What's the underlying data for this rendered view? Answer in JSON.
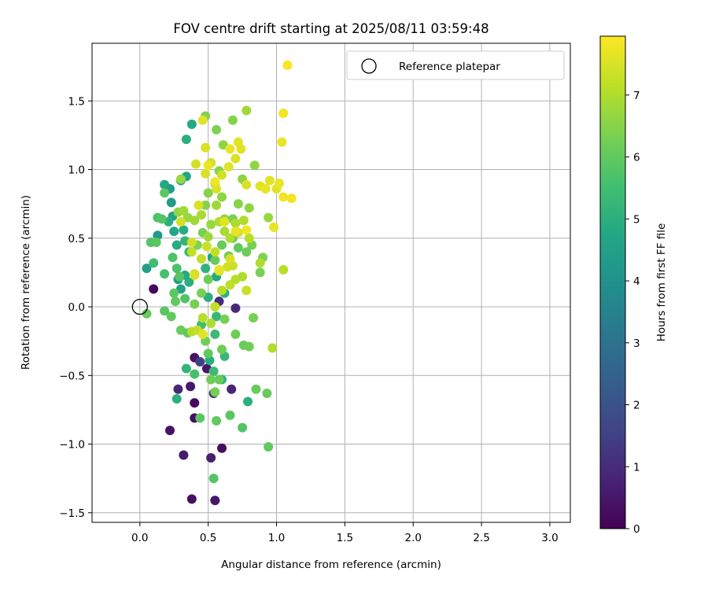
{
  "chart_data": {
    "type": "scatter",
    "title": "FOV centre drift starting at 2025/08/11 03:59:48",
    "xlabel": "Angular distance from reference (arcmin)",
    "ylabel": "Rotation from reference (arcmin)",
    "xlim": [
      -0.35,
      3.15
    ],
    "ylim": [
      -1.57,
      1.92
    ],
    "xticks": [
      "0.0",
      "0.5",
      "1.0",
      "1.5",
      "2.0",
      "2.5",
      "3.0"
    ],
    "yticks": [
      "−1.5",
      "−1.0",
      "−0.5",
      "0.0",
      "0.5",
      "1.0",
      "1.5"
    ],
    "grid": true,
    "legend": {
      "placement": "top-right",
      "entries": [
        {
          "label": "Reference platepar",
          "marker": "open-circle",
          "x": 0.0,
          "y": 0.0
        }
      ]
    },
    "colorbar": {
      "label": "Hours from first FF file",
      "range": [
        0,
        7.95
      ],
      "ticks": [
        "0",
        "1",
        "2",
        "3",
        "4",
        "5",
        "6",
        "7"
      ],
      "colormap": "viridis"
    },
    "series": [
      {
        "points": [
          [
            0.1,
            0.13,
            0.2
          ],
          [
            0.22,
            -0.9,
            0.4
          ],
          [
            0.28,
            -0.6,
            0.9
          ],
          [
            0.32,
            -1.08,
            0.6
          ],
          [
            0.37,
            -0.58,
            0.5
          ],
          [
            0.38,
            -1.4,
            0.3
          ],
          [
            0.4,
            -0.7,
            0.2
          ],
          [
            0.4,
            -0.81,
            0.3
          ],
          [
            0.4,
            -0.37,
            0.4
          ],
          [
            0.49,
            -0.45,
            0.5
          ],
          [
            0.52,
            -1.1,
            0.7
          ],
          [
            0.55,
            -1.41,
            0.5
          ],
          [
            0.54,
            -0.63,
            1.2
          ],
          [
            0.6,
            -1.03,
            0.3
          ],
          [
            0.67,
            -0.6,
            0.8
          ],
          [
            0.7,
            -0.01,
            0.9
          ],
          [
            0.58,
            0.04,
            1.0
          ],
          [
            0.44,
            -0.4,
            1.5
          ],
          [
            0.05,
            0.28,
            4.5
          ],
          [
            0.13,
            0.52,
            4.2
          ],
          [
            0.18,
            0.89,
            4.8
          ],
          [
            0.22,
            0.86,
            4.4
          ],
          [
            0.23,
            0.76,
            4.3
          ],
          [
            0.24,
            0.66,
            4.6
          ],
          [
            0.21,
            0.62,
            5.0
          ],
          [
            0.25,
            0.55,
            4.7
          ],
          [
            0.27,
            0.45,
            4.9
          ],
          [
            0.3,
            0.92,
            4.6
          ],
          [
            0.34,
            0.95,
            4.7
          ],
          [
            0.38,
            1.33,
            4.8
          ],
          [
            0.34,
            1.22,
            5.0
          ],
          [
            0.28,
            0.2,
            4.4
          ],
          [
            0.3,
            0.13,
            4.6
          ],
          [
            0.33,
            0.23,
            4.8
          ],
          [
            0.36,
            0.18,
            5.0
          ],
          [
            0.32,
            0.56,
            4.9
          ],
          [
            0.33,
            0.48,
            5.2
          ],
          [
            0.36,
            0.4,
            5.3
          ],
          [
            0.27,
            -0.67,
            5.0
          ],
          [
            0.34,
            -0.45,
            5.2
          ],
          [
            0.48,
            0.28,
            5.1
          ],
          [
            0.53,
            0.36,
            4.6
          ],
          [
            0.56,
            0.22,
            4.8
          ],
          [
            0.62,
            0.1,
            5.0
          ],
          [
            0.51,
            -0.39,
            4.9
          ],
          [
            0.55,
            -0.2,
            5.4
          ],
          [
            0.62,
            -0.36,
            5.3
          ],
          [
            0.6,
            -0.53,
            5.1
          ],
          [
            0.79,
            -0.69,
            5.0
          ],
          [
            0.5,
            0.07,
            5.0
          ],
          [
            0.45,
            -0.13,
            5.5
          ],
          [
            0.54,
            -0.47,
            5.4
          ],
          [
            0.4,
            -0.49,
            5.6
          ],
          [
            0.56,
            -0.07,
            5.3
          ],
          [
            0.18,
            0.24,
            5.6
          ],
          [
            0.1,
            0.32,
            5.5
          ],
          [
            0.13,
            0.65,
            5.7
          ],
          [
            0.16,
            0.64,
            5.8
          ],
          [
            0.18,
            0.83,
            5.9
          ],
          [
            0.08,
            0.47,
            5.8
          ],
          [
            0.12,
            0.47,
            5.9
          ],
          [
            0.24,
            0.36,
            5.7
          ],
          [
            0.27,
            0.28,
            5.7
          ],
          [
            0.29,
            0.22,
            5.8
          ],
          [
            0.33,
            0.06,
            5.8
          ],
          [
            0.25,
            0.1,
            5.9
          ],
          [
            0.26,
            0.04,
            6.0
          ],
          [
            0.23,
            -0.07,
            6.0
          ],
          [
            0.18,
            -0.03,
            5.9
          ],
          [
            0.05,
            -0.05,
            6.1
          ],
          [
            0.3,
            -0.17,
            6.1
          ],
          [
            0.35,
            -0.19,
            6.0
          ],
          [
            0.44,
            -0.81,
            5.9
          ],
          [
            0.54,
            -1.25,
            5.8
          ],
          [
            0.56,
            -0.83,
            6.0
          ],
          [
            0.66,
            -0.79,
            5.9
          ],
          [
            0.75,
            -0.88,
            5.8
          ],
          [
            0.94,
            -1.02,
            6.0
          ],
          [
            0.85,
            -0.6,
            6.1
          ],
          [
            0.93,
            -0.63,
            6.1
          ],
          [
            0.52,
            -0.53,
            6.2
          ],
          [
            0.58,
            -0.53,
            6.1
          ],
          [
            0.55,
            -0.62,
            6.3
          ],
          [
            0.48,
            -0.25,
            6.2
          ],
          [
            0.6,
            -0.31,
            6.2
          ],
          [
            0.7,
            -0.2,
            6.2
          ],
          [
            0.76,
            -0.28,
            6.1
          ],
          [
            0.8,
            -0.29,
            6.2
          ],
          [
            0.83,
            -0.08,
            6.3
          ],
          [
            0.62,
            -0.09,
            6.3
          ],
          [
            0.5,
            -0.34,
            6.0
          ],
          [
            0.4,
            0.02,
            6.3
          ],
          [
            0.45,
            0.1,
            6.3
          ],
          [
            0.5,
            0.2,
            6.2
          ],
          [
            0.55,
            0.34,
            6.1
          ],
          [
            0.6,
            0.45,
            6.1
          ],
          [
            0.65,
            0.37,
            6.2
          ],
          [
            0.68,
            0.5,
            6.1
          ],
          [
            0.72,
            0.43,
            6.0
          ],
          [
            0.78,
            0.4,
            6.2
          ],
          [
            0.82,
            0.45,
            6.3
          ],
          [
            0.88,
            0.25,
            6.3
          ],
          [
            0.9,
            0.36,
            6.4
          ],
          [
            0.42,
            0.45,
            6.4
          ],
          [
            0.46,
            0.54,
            6.3
          ],
          [
            0.48,
            0.74,
            6.5
          ],
          [
            0.5,
            0.83,
            6.5
          ],
          [
            0.55,
            0.9,
            6.4
          ],
          [
            0.58,
            0.99,
            6.5
          ],
          [
            0.6,
            0.8,
            6.6
          ],
          [
            0.62,
            0.64,
            6.6
          ],
          [
            0.68,
            0.64,
            6.3
          ],
          [
            0.72,
            0.75,
            6.5
          ],
          [
            0.75,
            0.93,
            6.6
          ],
          [
            0.8,
            0.72,
            6.6
          ],
          [
            0.84,
            1.03,
            6.6
          ],
          [
            0.56,
            1.29,
            6.4
          ],
          [
            0.48,
            1.39,
            6.4
          ],
          [
            0.61,
            1.18,
            6.6
          ],
          [
            0.68,
            1.36,
            6.5
          ],
          [
            0.78,
            1.43,
            6.8
          ],
          [
            0.94,
            0.65,
            6.7
          ],
          [
            0.28,
            0.69,
            6.6
          ],
          [
            0.3,
            0.93,
            6.7
          ],
          [
            0.32,
            0.7,
            6.8
          ],
          [
            0.35,
            0.65,
            6.7
          ],
          [
            0.4,
            0.63,
            6.8
          ],
          [
            0.45,
            0.67,
            6.9
          ],
          [
            0.5,
            0.51,
            6.8
          ],
          [
            0.52,
            0.6,
            6.7
          ],
          [
            0.56,
            0.74,
            6.8
          ],
          [
            0.58,
            0.62,
            7.0
          ],
          [
            0.62,
            0.55,
            6.9
          ],
          [
            0.66,
            0.5,
            7.0
          ],
          [
            0.7,
            0.61,
            6.9
          ],
          [
            0.76,
            0.63,
            7.0
          ],
          [
            0.8,
            0.5,
            7.1
          ],
          [
            0.88,
            0.32,
            7.0
          ],
          [
            1.05,
            0.27,
            7.1
          ],
          [
            0.97,
            -0.3,
            7.0
          ],
          [
            0.46,
            -0.08,
            7.1
          ],
          [
            0.52,
            -0.12,
            7.0
          ],
          [
            0.38,
            -0.18,
            7.1
          ],
          [
            0.42,
            -0.17,
            7.2
          ],
          [
            0.55,
            0.0,
            7.2
          ],
          [
            0.6,
            0.12,
            7.1
          ],
          [
            0.66,
            0.16,
            7.2
          ],
          [
            0.7,
            0.2,
            7.1
          ],
          [
            0.75,
            0.22,
            7.0
          ],
          [
            0.38,
            0.4,
            7.2
          ],
          [
            0.4,
            0.24,
            7.3
          ],
          [
            0.45,
            0.35,
            7.2
          ],
          [
            0.49,
            0.44,
            7.3
          ],
          [
            0.55,
            0.4,
            7.2
          ],
          [
            0.58,
            0.26,
            7.3
          ],
          [
            0.64,
            0.29,
            7.4
          ],
          [
            0.68,
            0.3,
            7.3
          ],
          [
            0.72,
            0.54,
            7.4
          ],
          [
            0.78,
            0.12,
            7.3
          ],
          [
            0.3,
            0.62,
            7.4
          ],
          [
            0.38,
            0.47,
            7.4
          ],
          [
            0.43,
            0.74,
            7.5
          ],
          [
            0.48,
            0.97,
            7.5
          ],
          [
            0.52,
            1.05,
            7.4
          ],
          [
            0.56,
            0.86,
            7.5
          ],
          [
            0.6,
            0.96,
            7.4
          ],
          [
            0.65,
            1.02,
            7.6
          ],
          [
            0.7,
            1.08,
            7.5
          ],
          [
            0.74,
            1.15,
            7.6
          ],
          [
            0.66,
            1.15,
            7.7
          ],
          [
            0.72,
            1.2,
            7.6
          ],
          [
            0.78,
            0.89,
            7.5
          ],
          [
            0.88,
            0.88,
            7.6
          ],
          [
            0.92,
            0.86,
            7.7
          ],
          [
            0.95,
            0.92,
            7.6
          ],
          [
            0.98,
            0.58,
            7.7
          ],
          [
            1.0,
            0.86,
            7.6
          ],
          [
            1.02,
            0.9,
            7.7
          ],
          [
            1.05,
            0.8,
            7.8
          ],
          [
            1.11,
            0.79,
            7.8
          ],
          [
            1.04,
            1.2,
            7.7
          ],
          [
            1.05,
            1.41,
            7.8
          ],
          [
            1.08,
            1.76,
            7.9
          ],
          [
            0.48,
            1.16,
            7.5
          ],
          [
            0.46,
            1.36,
            7.6
          ],
          [
            0.5,
            1.03,
            7.7
          ],
          [
            0.55,
            0.91,
            7.8
          ],
          [
            0.62,
            0.62,
            7.6
          ],
          [
            0.7,
            0.55,
            7.7
          ],
          [
            0.78,
            0.56,
            7.8
          ],
          [
            0.46,
            -0.2,
            7.6
          ],
          [
            0.58,
            0.27,
            7.7
          ],
          [
            0.66,
            0.35,
            7.5
          ],
          [
            0.4,
            0.23,
            7.5
          ],
          [
            0.41,
            1.04,
            7.4
          ]
        ]
      }
    ]
  }
}
